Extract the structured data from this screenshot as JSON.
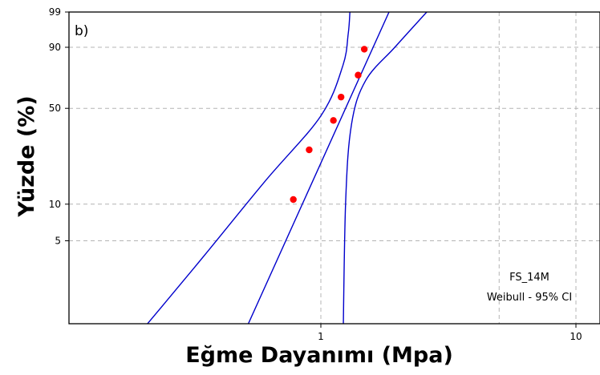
{
  "chart_data": {
    "type": "scatter",
    "panel_label": "b)",
    "xlabel": "Eğme Dayanımı (Mpa)",
    "ylabel": "Yüzde (%)",
    "x_scale": "log",
    "y_scale": "weibull",
    "xlim": [
      0.1,
      12
    ],
    "ylim": [
      0.5,
      99
    ],
    "x_ticks": [
      {
        "value": 1,
        "label": "1"
      },
      {
        "value": 10,
        "label": "10"
      }
    ],
    "y_ticks": [
      {
        "value": 99,
        "label": "99"
      },
      {
        "value": 90,
        "label": "90"
      },
      {
        "value": 50,
        "label": "50"
      },
      {
        "value": 10,
        "label": "10"
      },
      {
        "value": 5,
        "label": "5"
      }
    ],
    "grid": true,
    "annotation": [
      "FS_14M",
      "Weibull - 95% CI"
    ],
    "point_color": "#ff0000",
    "line_color": "#0000cc",
    "series": [
      {
        "type": "scatter",
        "points": [
          {
            "x": 0.78,
            "y": 10.9
          },
          {
            "x": 0.9,
            "y": 26.4
          },
          {
            "x": 1.12,
            "y": 42.1
          },
          {
            "x": 1.2,
            "y": 57.9
          },
          {
            "x": 1.4,
            "y": 73.6
          },
          {
            "x": 1.48,
            "y": 89.1
          }
        ]
      },
      {
        "type": "line",
        "role": "fit",
        "points": [
          {
            "x": 0.45,
            "y": 0.5
          },
          {
            "x": 1.85,
            "y": 99
          }
        ]
      },
      {
        "type": "line",
        "role": "lower-ci",
        "points": [
          {
            "x": 0.16,
            "y": 0.5
          },
          {
            "x": 0.32,
            "y": 3
          },
          {
            "x": 0.6,
            "y": 15
          },
          {
            "x": 1.0,
            "y": 45
          },
          {
            "x": 1.22,
            "y": 80
          },
          {
            "x": 1.28,
            "y": 95
          },
          {
            "x": 1.3,
            "y": 99
          }
        ]
      },
      {
        "type": "line",
        "role": "upper-ci",
        "points": [
          {
            "x": 1.22,
            "y": 0.5
          },
          {
            "x": 1.25,
            "y": 10
          },
          {
            "x": 1.32,
            "y": 40
          },
          {
            "x": 1.5,
            "y": 70
          },
          {
            "x": 1.95,
            "y": 90
          },
          {
            "x": 2.6,
            "y": 99
          }
        ]
      }
    ]
  }
}
